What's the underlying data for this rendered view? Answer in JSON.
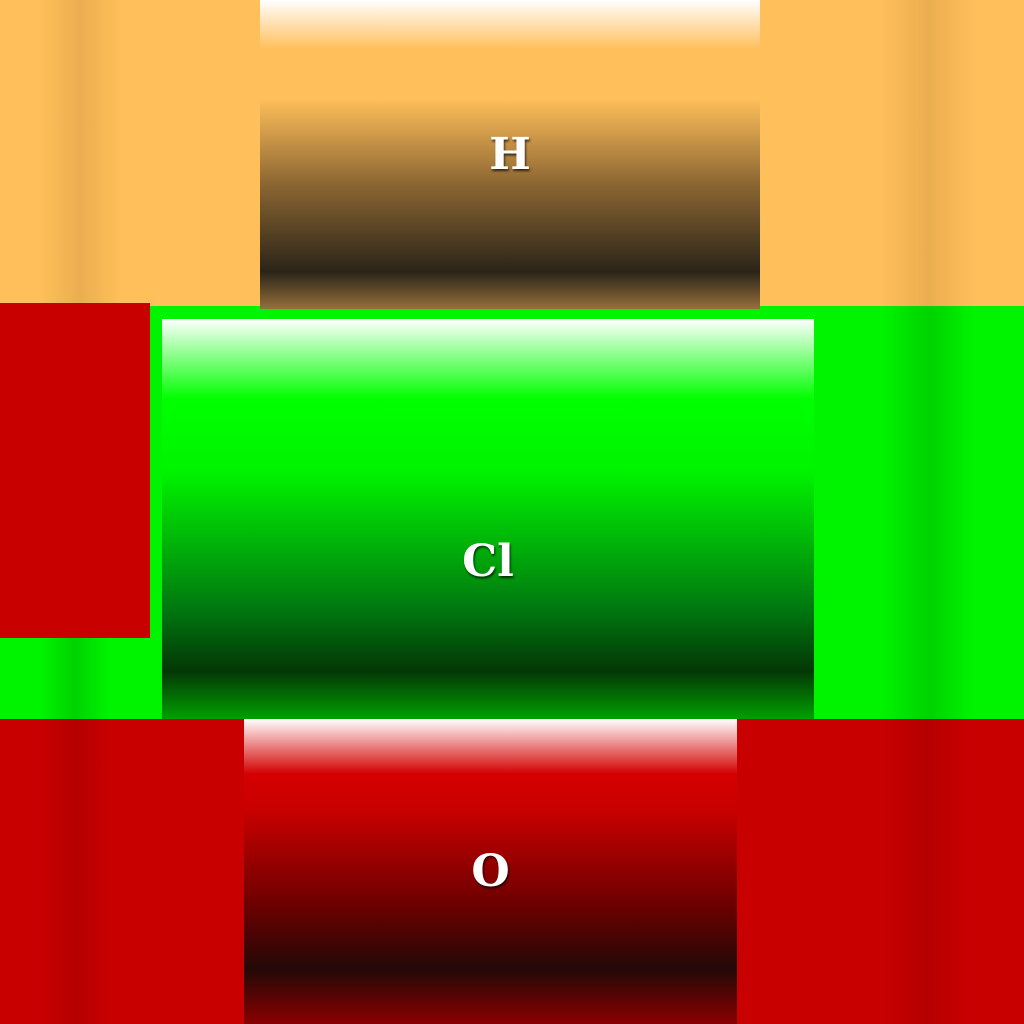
{
  "elements": [
    {
      "symbol": "H",
      "color": "#ffbf5a"
    },
    {
      "symbol": "Cl",
      "color": "#00f400"
    },
    {
      "symbol": "O",
      "color": "#c80000"
    }
  ],
  "accent_red": "#c80000"
}
